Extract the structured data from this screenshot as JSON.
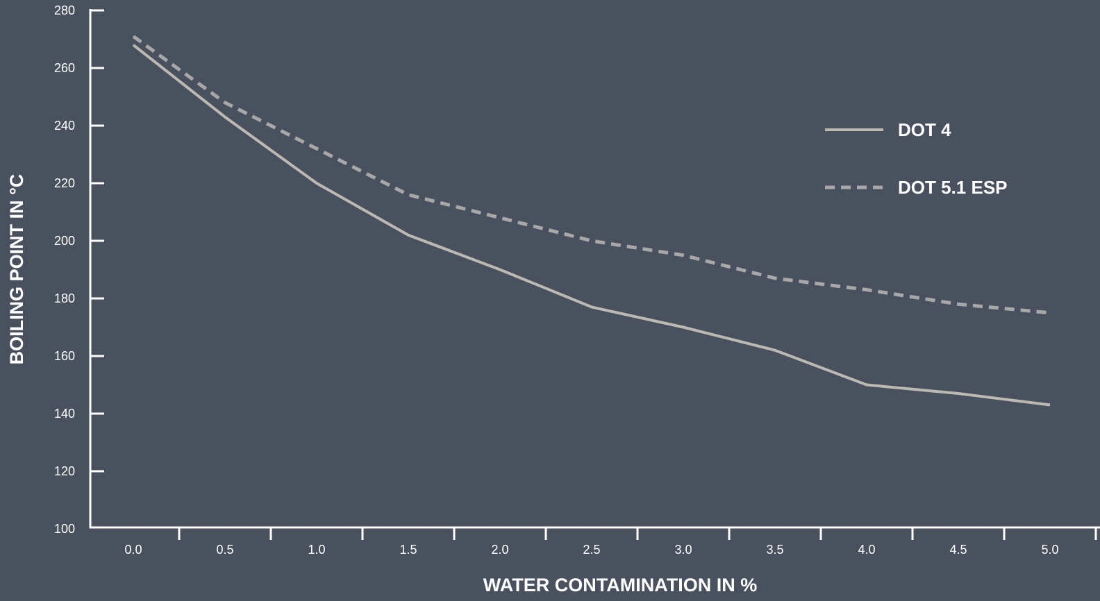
{
  "chart_data": {
    "type": "line",
    "xlabel": "WATER CONTAMINATION IN %",
    "ylabel": "BOILING POINT IN °C",
    "xlim": [
      0,
      5
    ],
    "ylim": [
      100,
      280
    ],
    "x_ticks": [
      "0.0",
      "0.5",
      "1.0",
      "1.5",
      "2.0",
      "2.5",
      "3.0",
      "3.5",
      "4.0",
      "4.5",
      "5.0"
    ],
    "y_ticks": [
      "100",
      "120",
      "140",
      "160",
      "180",
      "200",
      "220",
      "240",
      "260",
      "280"
    ],
    "x": [
      0.0,
      0.5,
      1.0,
      1.5,
      2.0,
      2.5,
      3.0,
      3.5,
      4.0,
      4.5,
      5.0
    ],
    "series": [
      {
        "name": "DOT 4",
        "style": "solid",
        "color": "#bcb9b3",
        "values": [
          268,
          243,
          220,
          202,
          190,
          177,
          170,
          162,
          150,
          147,
          143
        ]
      },
      {
        "name": "DOT 5.1 ESP",
        "style": "dashed",
        "color": "#a8a8a8",
        "values": [
          271,
          248,
          232,
          216,
          208,
          200,
          195,
          187,
          183,
          178,
          175
        ]
      }
    ],
    "legend_position": "top-right",
    "grid": false
  },
  "colors": {
    "background": "#4a515e",
    "axis": "#ffffff"
  }
}
